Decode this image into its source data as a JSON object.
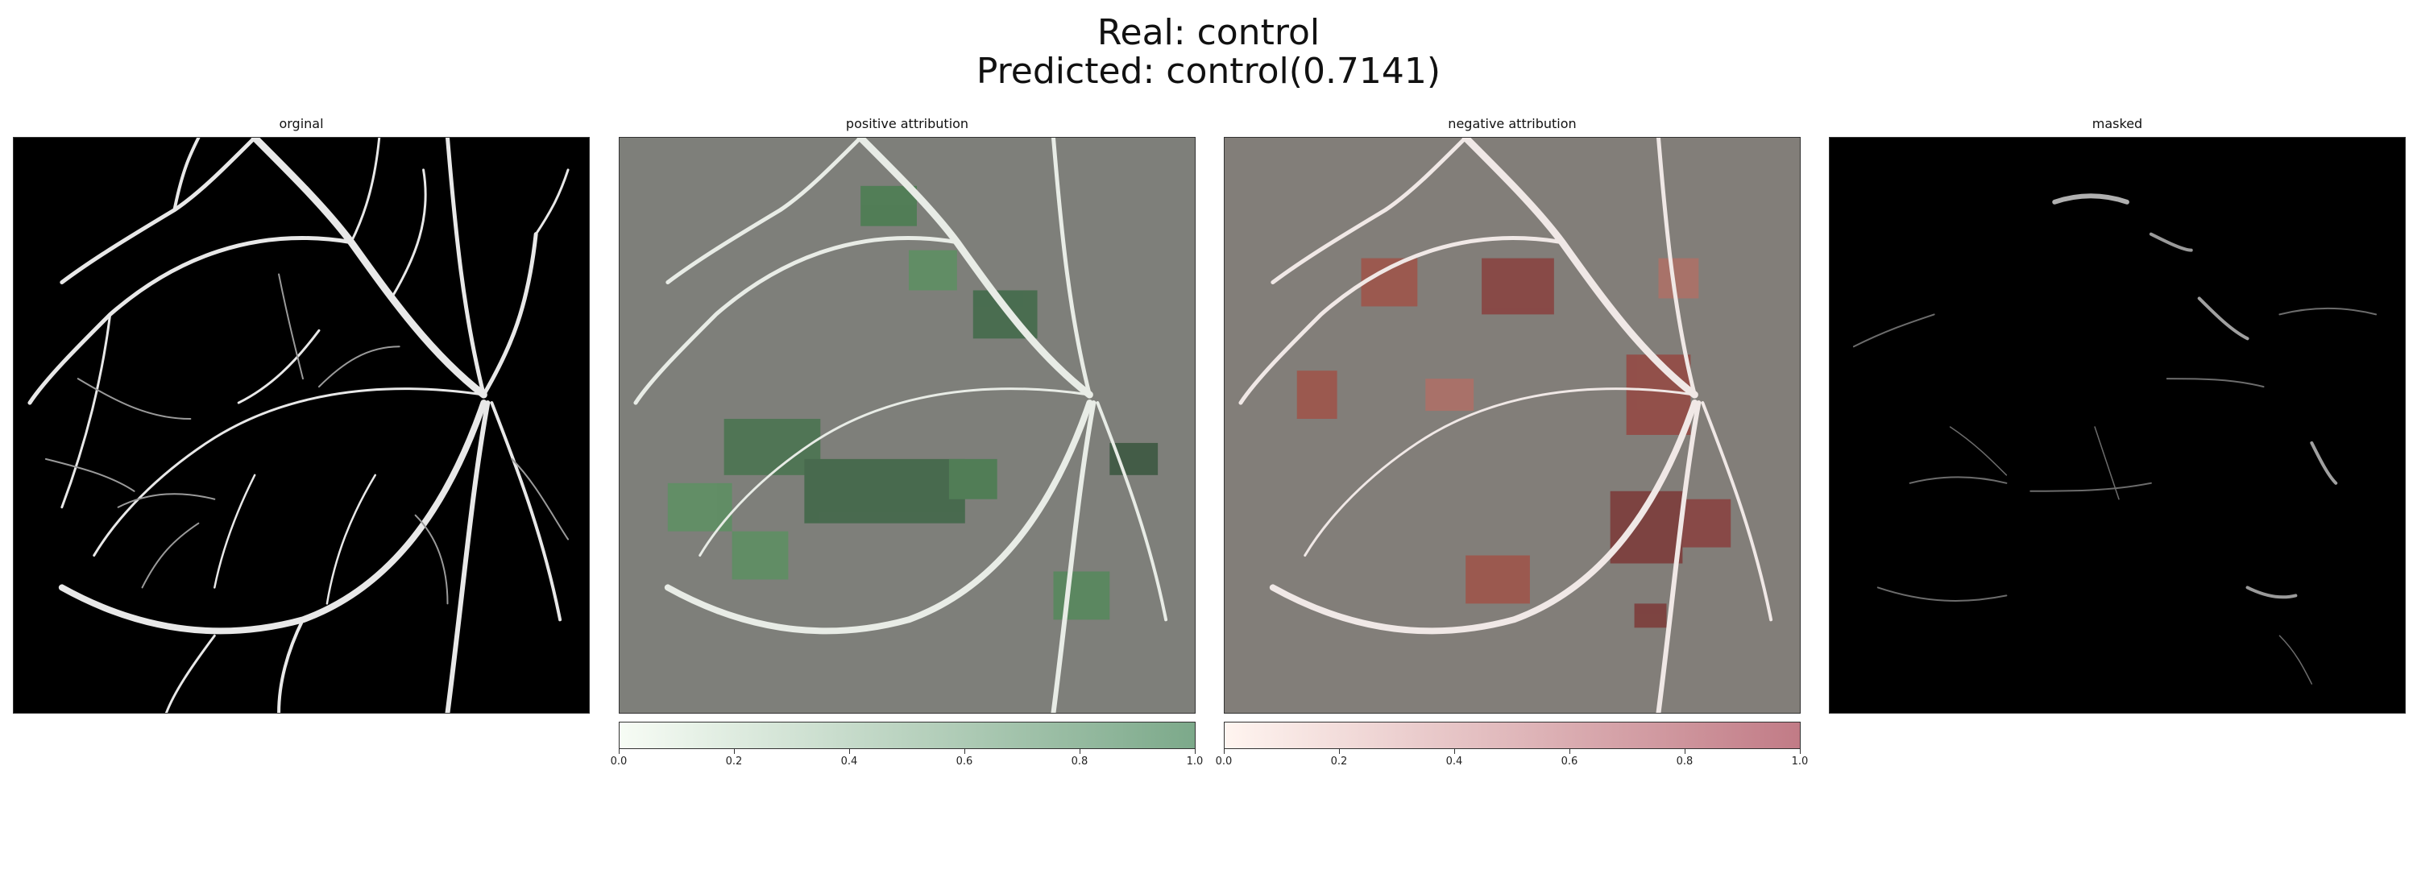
{
  "figure": {
    "title_line1": "Real: control",
    "title_line2": "Predicted: control(0.7141)"
  },
  "panels": [
    {
      "title": "orginal",
      "icon": "retina-vessel-segmentation-image"
    },
    {
      "title": "positive attribution",
      "icon": "retina-vessel-positive-heatmap"
    },
    {
      "title": "negative attribution",
      "icon": "retina-vessel-negative-heatmap"
    },
    {
      "title": "masked",
      "icon": "retina-vessel-masked-image"
    }
  ],
  "colorbars": {
    "positive": {
      "colormap": "Greens",
      "colors": [
        "#f7fcf5",
        "#7ca98a"
      ],
      "ticks": [
        "0.0",
        "0.2",
        "0.4",
        "0.6",
        "0.8",
        "1.0"
      ],
      "range": [
        0.0,
        1.0
      ]
    },
    "negative": {
      "colormap": "Reds",
      "colors": [
        "#fff5f0",
        "#c17b86"
      ],
      "ticks": [
        "0.0",
        "0.2",
        "0.4",
        "0.6",
        "0.8",
        "1.0"
      ],
      "range": [
        0.0,
        1.0
      ]
    }
  }
}
